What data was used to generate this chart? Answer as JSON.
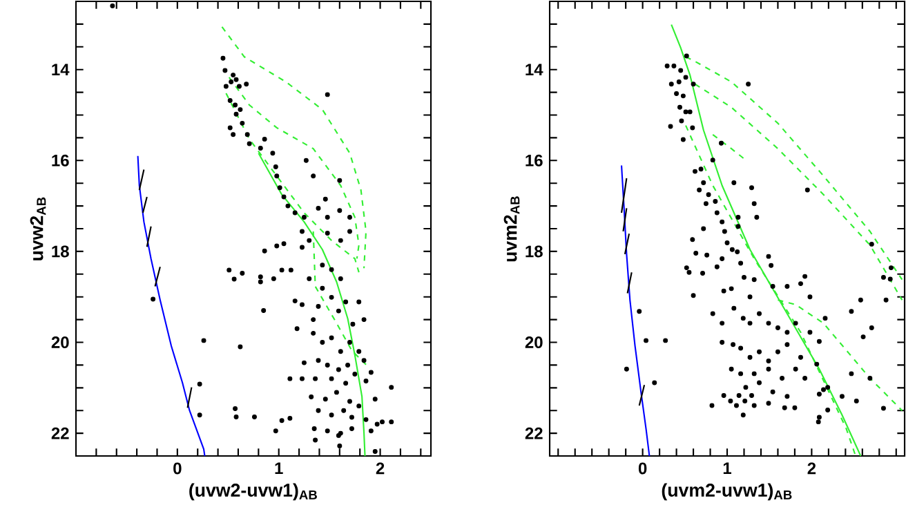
{
  "chart_data": [
    {
      "type": "scatter",
      "xlabel": "(uvw2-uvw1)$_{AB}$",
      "ylabel": "uvw2$_{AB}$",
      "xlim": [
        -1,
        2.5
      ],
      "ylim": [
        22.5,
        12.5
      ],
      "xticks": [
        {
          "value": -0.8,
          "label": null
        },
        {
          "value": -0.6,
          "label": null
        },
        {
          "value": -0.4,
          "label": null
        },
        {
          "value": -0.2,
          "label": null
        },
        0,
        {
          "value": 0.2,
          "label": null
        },
        {
          "value": 0.4,
          "label": null
        },
        {
          "value": 0.6,
          "label": null
        },
        {
          "value": 0.8,
          "label": null
        },
        1,
        {
          "value": 1.2,
          "label": null
        },
        {
          "value": 1.4,
          "label": null
        },
        {
          "value": 1.6,
          "label": null
        },
        {
          "value": 1.8,
          "label": null
        },
        2,
        {
          "value": 2.2,
          "label": null
        },
        {
          "value": 2.4,
          "label": null
        }
      ],
      "yticks": [
        {
          "value": 13,
          "label": null
        },
        {
          "value": 13.5,
          "label": null
        },
        14,
        {
          "value": 14.5,
          "label": null
        },
        {
          "value": 15,
          "label": null
        },
        {
          "value": 15.5,
          "label": null
        },
        16,
        {
          "value": 16.5,
          "label": null
        },
        {
          "value": 17,
          "label": null
        },
        {
          "value": 17.5,
          "label": null
        },
        18,
        {
          "value": 18.5,
          "label": null
        },
        {
          "value": 19,
          "label": null
        },
        {
          "value": 19.5,
          "label": null
        },
        20,
        {
          "value": 20.5,
          "label": null
        },
        {
          "value": 21,
          "label": null
        },
        {
          "value": 21.5,
          "label": null
        },
        22
      ],
      "series": [
        {
          "type": "line",
          "color": "#33ee33",
          "line_style": "solid",
          "x": [
            0.8,
            1.03,
            1.25,
            1.43,
            1.57,
            1.68,
            1.75,
            1.82,
            1.84,
            1.85
          ],
          "values": [
            15.84,
            16.75,
            17.35,
            17.96,
            18.67,
            19.48,
            20.28,
            21.19,
            21.99,
            22.5
          ]
        },
        {
          "type": "line",
          "color": "#33ee33",
          "line_style": "dashed",
          "x": [
            0.44,
            0.66,
            1.07,
            1.43,
            1.7,
            1.81,
            1.86,
            1.84
          ],
          "values": [
            13.06,
            13.72,
            14.27,
            14.88,
            15.84,
            16.65,
            17.56,
            18.37
          ]
        },
        {
          "type": "line",
          "color": "#33ee33",
          "line_style": "dashed",
          "x": [
            0.51,
            0.71,
            0.98,
            1.34,
            1.61,
            1.75,
            1.79,
            1.77
          ],
          "values": [
            14.17,
            14.78,
            15.28,
            15.74,
            16.55,
            17.25,
            17.86,
            18.16
          ]
        },
        {
          "type": "line",
          "color": "#33ee33",
          "line_style": "dashed",
          "x": [
            0.48,
            0.71,
            0.98,
            1.25,
            1.52,
            1.75,
            1.79
          ],
          "values": [
            14.52,
            15.53,
            16.34,
            17.15,
            17.76,
            18.16,
            18.46
          ]
        },
        {
          "type": "line",
          "color": "#33ee33",
          "line_style": "dashed",
          "x": [
            1.34,
            1.36,
            1.57,
            1.72,
            1.86
          ],
          "values": [
            17.56,
            18.77,
            19.58,
            20.18,
            20.49
          ]
        },
        {
          "type": "line",
          "color": "#0000ff",
          "line_style": "solid",
          "x": [
            -0.39,
            -0.375,
            -0.33,
            -0.26,
            -0.17,
            -0.06,
            0.05,
            0.12,
            0.26,
            0.27
          ],
          "values": [
            15.9,
            16.55,
            17.35,
            18.16,
            19.07,
            20.08,
            20.89,
            21.5,
            22.35,
            22.5
          ]
        },
        {
          "type": "line",
          "color": "#000000",
          "line_style": "solid",
          "x": [
            -0.375,
            -0.33,
            null,
            -0.34,
            -0.3,
            null,
            -0.3,
            -0.26,
            null,
            -0.22,
            -0.17,
            null,
            0.1,
            0.14
          ],
          "values": [
            16.65,
            16.2,
            null,
            17.15,
            16.8,
            null,
            17.9,
            17.45,
            null,
            18.77,
            18.34,
            null,
            21.44,
            20.99
          ]
        },
        {
          "type": "scatter",
          "color": "#000000",
          "marker": "circle",
          "x": [
            -0.64,
            0.45,
            0.47,
            0.48,
            0.53,
            0.55,
            0.58,
            0.61,
            0.52,
            0.57,
            0.62,
            0.58,
            0.64,
            0.52,
            0.68,
            0.55,
            0.69,
            0.71,
            1.48,
            0.86,
            0.82,
            0.94,
            0.97,
            0.98,
            1.01,
            1.05,
            1.09,
            1.16,
            1.25,
            1.23,
            1.3,
            1.23,
            1.39,
            1.48,
            1.6,
            1.7,
            1.48,
            1.61,
            1.7,
            1.34,
            1.6,
            1.46,
            1.27,
            1.05,
            0.86,
            0.51,
            0.56,
            0.64,
            0.82,
            0.95,
            1.03,
            1.12,
            0.82,
            0.85,
            1.3,
            1.43,
            1.52,
            1.61,
            1.43,
            1.52,
            1.66,
            1.79,
            1.39,
            1.59,
            1.73,
            1.84,
            1.34,
            1.18,
            1.34,
            1.43,
            1.52,
            1.61,
            1.7,
            1.79,
            1.39,
            1.48,
            1.59,
            1.68,
            1.84,
            1.91,
            1.25,
            1.36,
            1.52,
            1.66,
            1.75,
            1.86,
            2.11,
            1.11,
            1.23,
            1.32,
            1.46,
            1.57,
            1.7,
            1.79,
            1.95,
            1.39,
            1.52,
            1.64,
            1.72,
            1.86,
            2.02,
            2.11,
            1.35,
            1.48,
            1.59,
            1.61,
            1.72,
            1.91,
            1.97,
            1.36,
            1.6,
            1.95,
            0.26,
            0.62,
            0.22,
            0.22,
            0.57,
            0.58,
            0.76,
            1.03,
            1.11,
            0.97,
            -0.24,
            1.23,
            1.16,
            0.98
          ],
          "values": [
            12.6,
            13.75,
            14.02,
            14.37,
            14.27,
            14.12,
            14.22,
            14.37,
            14.68,
            14.78,
            14.88,
            14.98,
            15.18,
            15.28,
            14.32,
            15.43,
            15.43,
            15.63,
            14.55,
            15.53,
            15.73,
            15.84,
            16.14,
            16.34,
            16.6,
            16.8,
            17.0,
            17.15,
            17.25,
            17.56,
            17.76,
            17.91,
            17.05,
            17.25,
            17.1,
            17.25,
            17.6,
            17.76,
            17.56,
            16.34,
            16.44,
            16.85,
            16.0,
            17.83,
            17.99,
            18.41,
            18.61,
            18.48,
            18.56,
            18.6,
            18.41,
            18.41,
            18.67,
            19.3,
            18.6,
            18.3,
            18.4,
            18.6,
            18.81,
            19.01,
            19.11,
            19.11,
            19.21,
            19.31,
            19.6,
            19.5,
            19.5,
            19.7,
            19.8,
            20.0,
            19.9,
            20.2,
            20.0,
            20.2,
            20.4,
            20.5,
            20.6,
            20.5,
            20.4,
            20.66,
            20.45,
            20.8,
            20.8,
            20.9,
            20.7,
            20.85,
            20.99,
            20.8,
            20.8,
            21.2,
            21.25,
            21.1,
            21.3,
            21.4,
            21.25,
            21.5,
            21.6,
            21.5,
            21.65,
            21.7,
            21.75,
            21.75,
            21.9,
            21.95,
            22.05,
            22.0,
            21.9,
            21.95,
            21.8,
            22.15,
            22.28,
            22.4,
            19.96,
            20.1,
            20.92,
            21.6,
            21.46,
            21.64,
            21.64,
            21.72,
            21.67,
            21.95,
            19.05,
            19.17,
            19.09,
            17.88
          ]
        }
      ]
    },
    {
      "type": "scatter",
      "xlabel": "(uvm2-uvw1)$_{AB}$",
      "ylabel": "uvm2$_{AB}$",
      "xlim": [
        -1.1,
        3.1
      ],
      "ylim": [
        22.5,
        12.5
      ],
      "xticks": [
        {
          "value": -1.0,
          "label": null
        },
        {
          "value": -0.8,
          "label": null
        },
        {
          "value": -0.6,
          "label": null
        },
        {
          "value": -0.4,
          "label": null
        },
        {
          "value": -0.2,
          "label": null
        },
        0,
        {
          "value": 0.2,
          "label": null
        },
        {
          "value": 0.4,
          "label": null
        },
        {
          "value": 0.6,
          "label": null
        },
        {
          "value": 0.8,
          "label": null
        },
        1,
        {
          "value": 1.2,
          "label": null
        },
        {
          "value": 1.4,
          "label": null
        },
        {
          "value": 1.6,
          "label": null
        },
        {
          "value": 1.8,
          "label": null
        },
        2,
        {
          "value": 2.2,
          "label": null
        },
        {
          "value": 2.4,
          "label": null
        },
        {
          "value": 2.6,
          "label": null
        },
        {
          "value": 2.8,
          "label": null
        },
        {
          "value": 3.0,
          "label": null
        }
      ],
      "yticks": [
        {
          "value": 13,
          "label": null
        },
        {
          "value": 13.5,
          "label": null
        },
        14,
        {
          "value": 14.5,
          "label": null
        },
        {
          "value": 15,
          "label": null
        },
        {
          "value": 15.5,
          "label": null
        },
        16,
        {
          "value": 16.5,
          "label": null
        },
        {
          "value": 17,
          "label": null
        },
        {
          "value": 17.5,
          "label": null
        },
        18,
        {
          "value": 18.5,
          "label": null
        },
        {
          "value": 19,
          "label": null
        },
        {
          "value": 19.5,
          "label": null
        },
        20,
        {
          "value": 20.5,
          "label": null
        },
        {
          "value": 21,
          "label": null
        },
        {
          "value": 21.5,
          "label": null
        },
        22
      ],
      "series": [
        {
          "type": "line",
          "color": "#33ee33",
          "line_style": "solid",
          "x": [
            0.34,
            0.45,
            0.56,
            0.72,
            0.94,
            1.27,
            1.71,
            2.09,
            2.36,
            2.58
          ],
          "values": [
            13.01,
            13.52,
            14.12,
            15.33,
            16.55,
            17.96,
            19.37,
            20.59,
            21.6,
            22.5
          ]
        },
        {
          "type": "line",
          "color": "#33ee33",
          "line_style": "dashed",
          "x": [
            0.51,
            0.62,
            1.05,
            1.6,
            2.14,
            2.69,
            3.07
          ],
          "values": [
            13.72,
            13.82,
            14.27,
            15.18,
            16.34,
            17.56,
            18.62
          ]
        },
        {
          "type": "line",
          "color": "#33ee33",
          "line_style": "dashed",
          "x": [
            0.62,
            1.05,
            1.6,
            2.14,
            2.69,
            3.07
          ],
          "values": [
            14.32,
            14.83,
            15.74,
            16.75,
            17.86,
            19.07
          ]
        },
        {
          "type": "line",
          "color": "#33ee33",
          "line_style": "dashed",
          "x": [
            0.83,
            1.05,
            1.22
          ],
          "values": [
            15.43,
            15.74,
            15.99
          ]
        },
        {
          "type": "line",
          "color": "#33ee33",
          "line_style": "dashed",
          "x": [
            1.6,
            1.81,
            2.14,
            2.69,
            3.07
          ],
          "values": [
            19.07,
            19.17,
            19.58,
            20.79,
            21.5
          ]
        },
        {
          "type": "line",
          "color": "#33ee33",
          "line_style": "dashed",
          "x": [
            0.51,
            0.83,
            1.32,
            1.87,
            2.41,
            2.52
          ],
          "values": [
            15.23,
            16.55,
            18.16,
            19.78,
            21.9,
            22.5
          ]
        },
        {
          "type": "line",
          "color": "#0000ff",
          "line_style": "solid",
          "x": [
            -0.25,
            -0.22,
            -0.19,
            -0.15,
            -0.09,
            -0.02,
            0.04,
            0.08
          ],
          "values": [
            16.11,
            17.05,
            18.06,
            19.07,
            20.08,
            21.09,
            21.9,
            22.5
          ]
        },
        {
          "type": "line",
          "color": "#000000",
          "line_style": "solid",
          "x": [
            -0.25,
            -0.19,
            null,
            -0.23,
            -0.19,
            null,
            -0.21,
            -0.16,
            null,
            -0.18,
            -0.13,
            null,
            -0.04,
            0.02
          ],
          "values": [
            17.15,
            16.39,
            null,
            17.56,
            17.05,
            null,
            18.06,
            17.61,
            null,
            18.92,
            18.46,
            null,
            21.39,
            20.94
          ]
        },
        {
          "type": "scatter",
          "color": "#000000",
          "marker": "circle",
          "x": [
            0.52,
            0.29,
            0.37,
            0.45,
            0.34,
            0.43,
            0.51,
            0.4,
            0.48,
            0.44,
            0.51,
            0.46,
            0.56,
            0.59,
            0.33,
            0.48,
            0.6,
            1.25,
            0.93,
            0.83,
            0.62,
            0.69,
            0.72,
            0.67,
            0.78,
            0.75,
            0.86,
            1.08,
            1.29,
            1.32,
            1.35,
            0.88,
            0.94,
            1.13,
            1.13,
            0.72,
            0.97,
            1.0,
            1.06,
            0.59,
            0.63,
            0.76,
            0.52,
            0.55,
            0.71,
            0.88,
            0.94,
            1.12,
            1.16,
            1.2,
            1.32,
            1.49,
            1.52,
            1.54,
            1.71,
            1.87,
            1.92,
            1.98,
            1.27,
            1.05,
            0.96,
            0.83,
            0.94,
            1.08,
            1.19,
            1.27,
            1.38,
            1.49,
            1.6,
            1.71,
            1.81,
            1.98,
            2.09,
            2.16,
            2.47,
            2.61,
            2.71,
            2.58,
            0.94,
            1.07,
            1.16,
            1.27,
            1.38,
            1.49,
            1.6,
            1.71,
            1.87,
            2.06,
            1.81,
            1.65,
            1.49,
            1.32,
            1.16,
            1.05,
            1.22,
            1.38,
            1.54,
            1.71,
            1.92,
            2.19,
            2.36,
            2.53,
            2.69,
            2.85,
            2.47,
            2.14,
            2.19,
            2.09,
            2.09,
            2.08,
            0.82,
            0.96,
            1.11,
            1.19,
            1.32,
            1.49,
            1.68,
            1.8,
            1.14,
            1.21,
            1.04,
            1.29,
            2.71,
            2.85,
            2.94,
            2.93,
            2.88,
            1.95,
            -0.04,
            0.04,
            0.27,
            -0.19,
            0.14,
            0.6
          ],
          "values": [
            13.7,
            13.92,
            13.92,
            14.02,
            14.32,
            14.27,
            14.17,
            14.53,
            14.58,
            14.83,
            14.93,
            15.13,
            14.93,
            15.28,
            15.25,
            15.54,
            14.32,
            14.32,
            15.62,
            15.99,
            16.24,
            16.19,
            16.49,
            16.65,
            16.75,
            16.95,
            16.9,
            16.49,
            16.6,
            16.95,
            17.25,
            17.15,
            17.35,
            17.25,
            17.45,
            17.5,
            17.56,
            17.81,
            17.96,
            17.74,
            18.04,
            18.08,
            18.36,
            18.46,
            18.48,
            18.34,
            18.16,
            18.01,
            18.26,
            18.57,
            18.62,
            18.11,
            18.31,
            18.77,
            18.77,
            18.71,
            18.55,
            19.0,
            19.0,
            18.82,
            18.87,
            19.37,
            19.58,
            19.25,
            19.47,
            19.58,
            19.37,
            19.58,
            19.68,
            19.78,
            19.58,
            19.78,
            19.98,
            19.47,
            19.32,
            19.88,
            19.68,
            19.07,
            20.0,
            20.05,
            20.13,
            20.33,
            20.21,
            20.41,
            20.21,
            20.05,
            20.33,
            20.48,
            20.59,
            20.79,
            20.59,
            20.69,
            20.69,
            20.59,
            20.99,
            20.89,
            21.09,
            21.19,
            20.79,
            20.99,
            21.19,
            21.29,
            20.79,
            21.45,
            20.69,
            21.04,
            21.49,
            21.14,
            21.65,
            21.75,
            21.39,
            21.17,
            21.39,
            21.6,
            21.39,
            21.34,
            21.44,
            21.44,
            21.17,
            21.29,
            21.29,
            21.17,
            17.84,
            18.57,
            18.36,
            18.61,
            19.07,
            16.65,
            19.32,
            19.96,
            19.96,
            20.59,
            20.89,
            18.97
          ]
        }
      ]
    }
  ]
}
